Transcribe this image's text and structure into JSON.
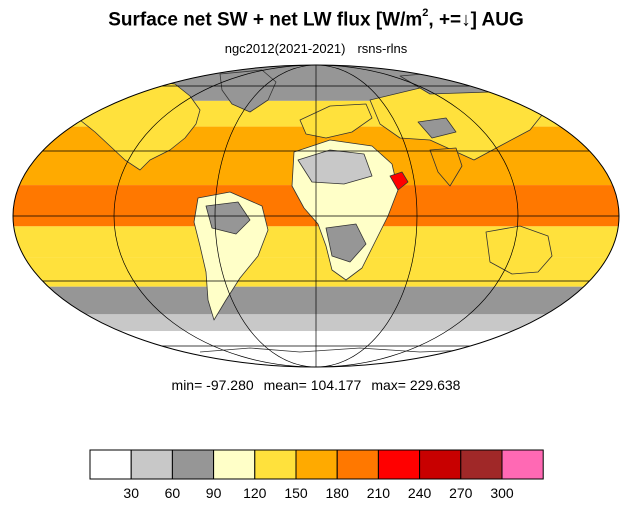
{
  "title": {
    "main": "Surface net SW + net LW flux [W/m",
    "superscript": "2",
    "suffix": ", +=↓]  AUG"
  },
  "subtitle": {
    "left": "ngc2012(2021-2021)",
    "right": "rsns-rlns"
  },
  "stats": {
    "min": "min= -97.280",
    "mean": "mean= 104.177",
    "max": "max= 229.638"
  },
  "colorbar": {
    "colors": [
      "#ffffff",
      "#c8c8c8",
      "#969696",
      "#ffffc8",
      "#ffe13c",
      "#ffaa00",
      "#ff7800",
      "#ff0000",
      "#c80000",
      "#a02828",
      "#ff69b4"
    ],
    "tick_labels": [
      "30",
      "60",
      "90",
      "120",
      "150",
      "180",
      "210",
      "240",
      "270",
      "300"
    ]
  },
  "chart_data": {
    "type": "heatmap",
    "projection": "Mollweide",
    "field": "rsns-rlns",
    "levels": [
      30,
      60,
      90,
      120,
      150,
      180,
      210,
      240,
      270,
      300
    ],
    "colors": [
      "#ffffff",
      "#c8c8c8",
      "#969696",
      "#ffffc8",
      "#ffe13c",
      "#ffaa00",
      "#ff7800",
      "#ff0000",
      "#c80000",
      "#a02828",
      "#ff69b4"
    ],
    "min": -97.28,
    "mean": 104.177,
    "max": 229.638,
    "latitude_bands": [
      {
        "lat_range": [
          60,
          90
        ],
        "value": 75
      },
      {
        "lat_range": [
          45,
          60
        ],
        "value": 135
      },
      {
        "lat_range": [
          30,
          45
        ],
        "value": 170
      },
      {
        "lat_range": [
          15,
          30
        ],
        "value": 165
      },
      {
        "lat_range": [
          -5,
          15
        ],
        "value": 180
      },
      {
        "lat_range": [
          -20,
          -5
        ],
        "value": 140
      },
      {
        "lat_range": [
          -35,
          -20
        ],
        "value": 120
      },
      {
        "lat_range": [
          -50,
          -35
        ],
        "value": 75
      },
      {
        "lat_range": [
          -60,
          -50
        ],
        "value": 45
      },
      {
        "lat_range": [
          -90,
          -60
        ],
        "value": 20
      }
    ]
  }
}
